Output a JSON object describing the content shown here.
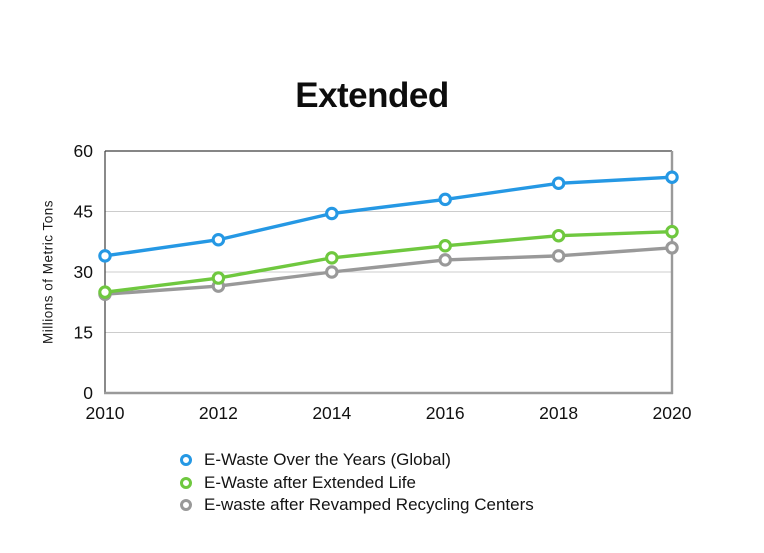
{
  "chart_data": {
    "type": "line",
    "title": "Extended",
    "xlabel": "",
    "ylabel": "Millions of Metric Tons",
    "categories": [
      "2010",
      "2012",
      "2014",
      "2016",
      "2018",
      "2020"
    ],
    "yticks": [
      0,
      15,
      30,
      45,
      60
    ],
    "ylim": [
      0,
      60
    ],
    "grid": "horizontal",
    "legend_position": "bottom-left",
    "series": [
      {
        "name": "E-Waste Over the Years (Global)",
        "color": "#2598E4",
        "values": [
          34,
          38,
          44.5,
          48,
          52,
          53.5
        ]
      },
      {
        "name": "E-Waste after Extended Life",
        "color": "#6FC83F",
        "values": [
          25,
          28.5,
          33.5,
          36.5,
          39,
          40
        ]
      },
      {
        "name": "E-waste after Revamped Recycling Centers",
        "color": "#999999",
        "values": [
          24.5,
          26.5,
          30,
          33,
          34,
          36
        ]
      }
    ],
    "axis_colors": {
      "gridline": "#cccccc",
      "frame_top_left": "#3d3d3d",
      "frame_bottom_right": "#9a9a9a",
      "tick_label": "#111111"
    }
  }
}
